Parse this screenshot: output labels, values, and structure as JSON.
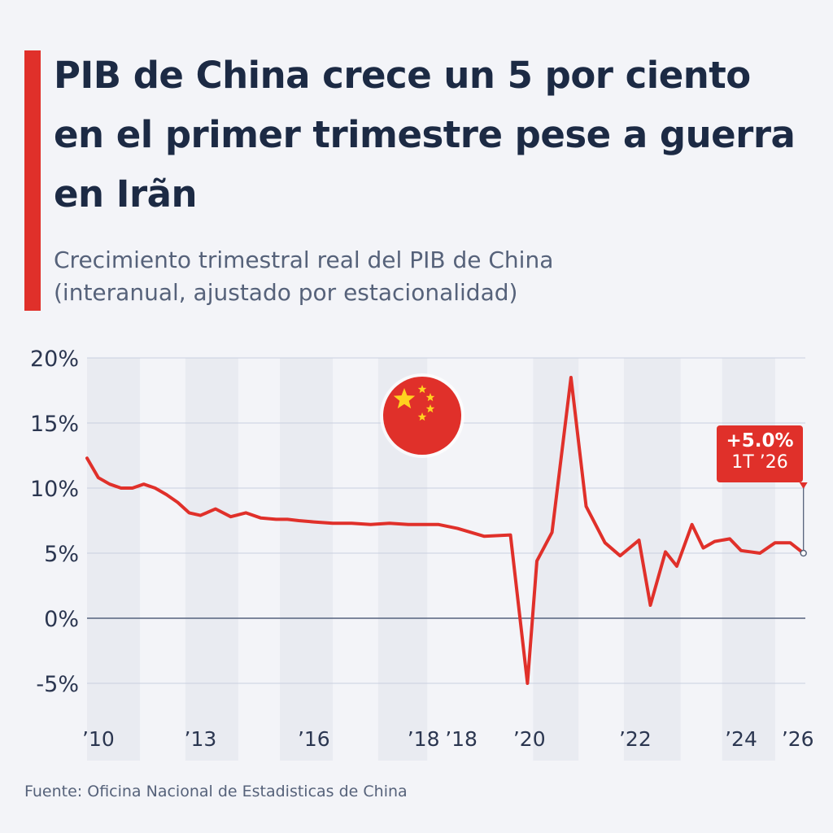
{
  "title": "PIB de China crece un 5 por ciento en el primer trimestre pese a guerra en Irãn",
  "subtitle_line1": "Crecimiento trimestral real del PIB de China",
  "subtitle_line2": "(interanual, ajustado por estacionalidad)",
  "source": "Fuente: Oficina Nacional de Estadisticas de China",
  "callout": {
    "value": "+5.0%",
    "period": "1T ’26"
  },
  "colors": {
    "accent": "#e0302a",
    "title": "#1c2a44",
    "line": "#e0302a",
    "flag_star": "#ffd21f"
  },
  "flag_icon": "china-flag-icon",
  "chart_data": {
    "type": "line",
    "title": "",
    "xlabel": "",
    "ylabel": "",
    "ylim": [
      -5,
      20
    ],
    "yticks": [
      20,
      15,
      10,
      5,
      0,
      -5
    ],
    "ytick_labels": [
      "20%",
      "15%",
      "10%",
      "5%",
      "0%",
      "-5%"
    ],
    "xtick_labels": [
      {
        "label": "’10",
        "x": 2010.3
      },
      {
        "label": "’13",
        "x": 2013.0
      },
      {
        "label": "’16",
        "x": 2016.0
      },
      {
        "label": "’18",
        "x": 2018.9
      },
      {
        "label": "’18",
        "x": 2019.9
      },
      {
        "label": "’20",
        "x": 2021.7
      },
      {
        "label": "’22",
        "x": 2024.5
      },
      {
        "label": "’24",
        "x": 2027.3
      },
      {
        "label": "’26",
        "x": 2028.8
      }
    ],
    "xlim": [
      2010,
      2029
    ],
    "grid": true,
    "bands": [
      [
        2010,
        2011.4
      ],
      [
        2012.6,
        2014.0
      ],
      [
        2015.1,
        2016.5
      ],
      [
        2017.7,
        2019.0
      ],
      [
        2021.8,
        2023.0
      ],
      [
        2024.2,
        2025.7
      ],
      [
        2026.8,
        2028.2
      ]
    ],
    "series": [
      {
        "x": [
          2010.0,
          2010.3,
          2010.6,
          2010.9,
          2011.2,
          2011.5,
          2011.8,
          2012.1,
          2012.4,
          2012.7,
          2013.0,
          2013.4,
          2013.8,
          2014.2,
          2014.6,
          2015.0,
          2015.3,
          2015.6,
          2016.0,
          2016.5,
          2017.0,
          2017.5,
          2018.0,
          2018.5,
          2018.8,
          2019.3,
          2019.8,
          2020.5,
          2021.2,
          2021.65,
          2021.9,
          2022.3,
          2022.8,
          2023.2,
          2023.7,
          2024.1,
          2024.6,
          2024.9,
          2025.3,
          2025.6,
          2026.0,
          2026.3,
          2026.6,
          2027.0,
          2027.3,
          2027.8,
          2028.2,
          2028.6,
          2028.95
        ],
        "values": [
          12.3,
          10.8,
          10.3,
          10.0,
          10.0,
          10.3,
          10.0,
          9.5,
          8.9,
          8.1,
          7.9,
          8.4,
          7.8,
          8.1,
          7.7,
          7.6,
          7.6,
          7.5,
          7.4,
          7.3,
          7.3,
          7.2,
          7.3,
          7.2,
          7.2,
          7.2,
          6.9,
          6.3,
          6.4,
          -5.0,
          4.4,
          6.6,
          18.5,
          8.6,
          5.8,
          4.8,
          6.0,
          1.0,
          5.1,
          4.0,
          7.2,
          5.4,
          5.9,
          6.1,
          5.2,
          5.0,
          5.8,
          5.8,
          5.0
        ]
      }
    ],
    "callout": {
      "label": "+5.0%",
      "period": "1T ’26",
      "x": 2028.95,
      "y": 5.0
    }
  }
}
